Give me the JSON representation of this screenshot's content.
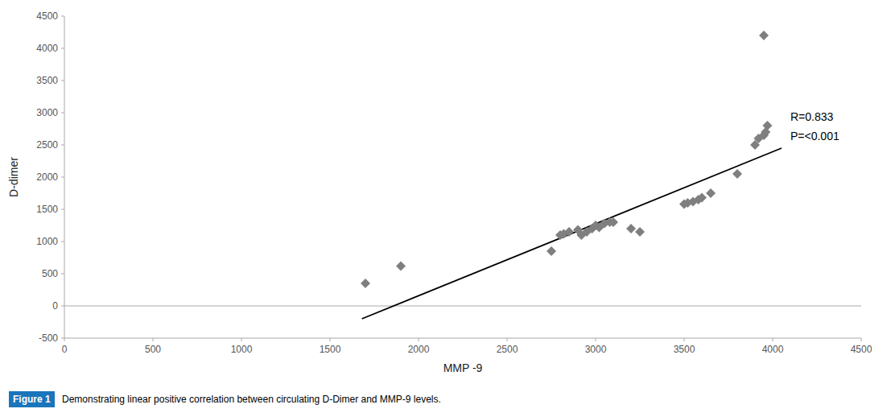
{
  "chart_data": {
    "type": "scatter",
    "xlabel": "MMP -9",
    "ylabel": "D-dimer",
    "series": [
      {
        "type": "scatter",
        "color": "#7f7f7f",
        "marker": "diamond",
        "x": [
          1700,
          1900,
          2750,
          2800,
          2820,
          2850,
          2900,
          2920,
          2950,
          2980,
          3000,
          3020,
          3050,
          3080,
          3100,
          3200,
          3250,
          3500,
          3520,
          3550,
          3580,
          3600,
          3650,
          3800,
          3900,
          3920,
          3950,
          3960,
          3970,
          3950
        ],
        "values": [
          350,
          620,
          850,
          1100,
          1120,
          1150,
          1180,
          1100,
          1150,
          1200,
          1250,
          1220,
          1280,
          1300,
          1300,
          1200,
          1150,
          1580,
          1600,
          1620,
          1650,
          1680,
          1750,
          2050,
          2500,
          2600,
          2650,
          2700,
          2800,
          4200
        ]
      },
      {
        "type": "line",
        "color": "#000000",
        "line_style": "solid",
        "x": [
          1680,
          4050
        ],
        "values": [
          -200,
          2450
        ]
      }
    ],
    "xlim": [
      0,
      4500
    ],
    "ylim": [
      -500,
      4500
    ],
    "xticks": [
      0,
      500,
      1000,
      1500,
      2000,
      2500,
      3000,
      3500,
      4000,
      4500
    ],
    "yticks": [
      -500,
      0,
      500,
      1000,
      1500,
      2000,
      2500,
      3000,
      3500,
      4000,
      4500
    ],
    "hline": 0,
    "grid": false,
    "annotations": [
      {
        "text": "R=0.833\nP=<0.001",
        "x": 4100,
        "y": 3050
      }
    ],
    "caption": {
      "label": "Figure 1",
      "label_color": "#1b75bb",
      "text": "Demonstrating linear positive correlation between circulating D-Dimer and MMP-9 levels."
    }
  }
}
